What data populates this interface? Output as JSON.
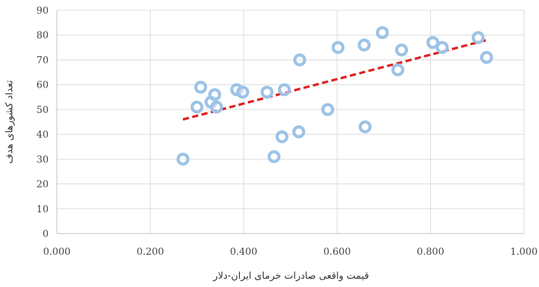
{
  "chart_data": {
    "type": "scatter",
    "xlabel": "قیمت واقعی صادرات خرمای ایران-دلار",
    "ylabel": "تعداد کشورهای هدف",
    "xlim": [
      0,
      1
    ],
    "ylim": [
      0,
      90
    ],
    "x_ticks": [
      "0.000",
      "0.200",
      "0.400",
      "0.600",
      "0.800",
      "1.000"
    ],
    "y_ticks": [
      "0",
      "10",
      "20",
      "30",
      "40",
      "50",
      "60",
      "70",
      "80",
      "90"
    ],
    "grid": true,
    "marker_color": "#9dc3e6",
    "trendline": {
      "style": "dashed",
      "color": "#e02020",
      "x": [
        0.27,
        0.92
      ],
      "y": [
        46,
        78
      ]
    },
    "points": [
      {
        "x": 0.27,
        "y": 30
      },
      {
        "x": 0.3,
        "y": 51
      },
      {
        "x": 0.308,
        "y": 59
      },
      {
        "x": 0.33,
        "y": 53
      },
      {
        "x": 0.338,
        "y": 56
      },
      {
        "x": 0.342,
        "y": 51
      },
      {
        "x": 0.385,
        "y": 58
      },
      {
        "x": 0.398,
        "y": 57
      },
      {
        "x": 0.45,
        "y": 57
      },
      {
        "x": 0.465,
        "y": 31
      },
      {
        "x": 0.482,
        "y": 39
      },
      {
        "x": 0.487,
        "y": 58
      },
      {
        "x": 0.518,
        "y": 41
      },
      {
        "x": 0.52,
        "y": 70
      },
      {
        "x": 0.58,
        "y": 50
      },
      {
        "x": 0.602,
        "y": 75
      },
      {
        "x": 0.658,
        "y": 76
      },
      {
        "x": 0.66,
        "y": 43
      },
      {
        "x": 0.697,
        "y": 81
      },
      {
        "x": 0.73,
        "y": 66
      },
      {
        "x": 0.738,
        "y": 74
      },
      {
        "x": 0.805,
        "y": 77
      },
      {
        "x": 0.825,
        "y": 75
      },
      {
        "x": 0.902,
        "y": 79
      },
      {
        "x": 0.92,
        "y": 71
      }
    ]
  }
}
